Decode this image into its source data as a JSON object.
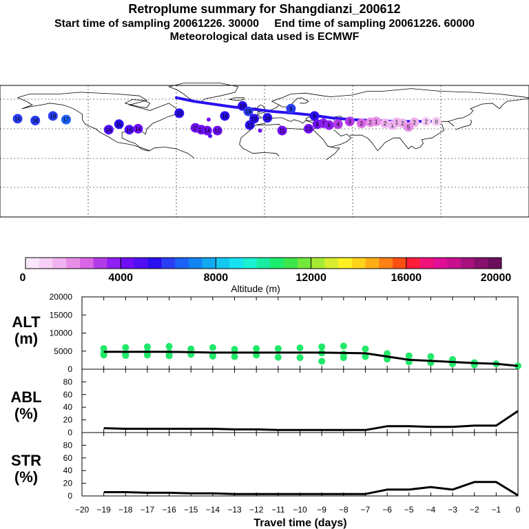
{
  "header": {
    "title": "Retroplume summary for Shangdianzi_200612",
    "subtitle": "Start time of sampling 20061226. 30000     End time of sampling 20061226. 60000",
    "met_line": "Meteorological data used is ECMWF"
  },
  "colorbar": {
    "label": "Altitude (m)",
    "ticks": [
      "0",
      "4000",
      "8000",
      "12000",
      "16000",
      "20000"
    ],
    "min": 0,
    "max": 20000,
    "colors": [
      "#fbe7fb",
      "#f7cff7",
      "#f0b2f0",
      "#e88de8",
      "#d966e6",
      "#b23be8",
      "#8f1ff2",
      "#6f0ff5",
      "#4f0ff5",
      "#2a0ff0",
      "#2b3ef5",
      "#1c61f5",
      "#1284f2",
      "#11a8f0",
      "#13c8f0",
      "#17e2f0",
      "#1af0d2",
      "#17eca0",
      "#1cec6e",
      "#3ce64b",
      "#73e83b",
      "#a6ea33",
      "#d7ee2e",
      "#fff021",
      "#ffd31a",
      "#ffad16",
      "#ff8014",
      "#ff4e14",
      "#ff1d3a",
      "#f0127a",
      "#e00f95",
      "#c8108e",
      "#a6117d",
      "#86106b",
      "#6b0f5c"
    ]
  },
  "map": {
    "markers": [
      {
        "lon": -168,
        "lat": 43,
        "label": "16",
        "alt": 6000
      },
      {
        "lon": -156,
        "lat": 41,
        "label": "18",
        "alt": 6200
      },
      {
        "lon": -144,
        "lat": 46,
        "label": "18",
        "alt": 6000
      },
      {
        "lon": -135,
        "lat": 42,
        "label": "17",
        "alt": 6300
      },
      {
        "lon": -99,
        "lat": 37,
        "label": "15",
        "alt": 5200
      },
      {
        "lon": -106,
        "lat": 31,
        "label": "16",
        "alt": 4800
      },
      {
        "lon": -92,
        "lat": 31,
        "label": "16",
        "alt": 4600
      },
      {
        "lon": -86,
        "lat": 32,
        "label": "14",
        "alt": 4400
      },
      {
        "lon": -58,
        "lat": 49,
        "label": "13",
        "alt": 5300
      },
      {
        "lon": -47,
        "lat": 33,
        "label": "11",
        "alt": 4300
      },
      {
        "lon": -43,
        "lat": 31,
        "label": "13",
        "alt": 4200
      },
      {
        "lon": -39,
        "lat": 30,
        "label": "14",
        "alt": 4200
      },
      {
        "lon": -37,
        "lat": 24,
        "label": "",
        "alt": 4700
      },
      {
        "lon": -38,
        "lat": 42,
        "label": "",
        "alt": 4000
      },
      {
        "lon": -32,
        "lat": 30,
        "label": "10",
        "alt": 4300
      },
      {
        "lon": -27,
        "lat": 46,
        "label": "16",
        "alt": 5500
      },
      {
        "lon": -15,
        "lat": 57,
        "label": "10",
        "alt": 5500
      },
      {
        "lon": -10,
        "lat": 36,
        "label": "12",
        "alt": 5600
      },
      {
        "lon": -11,
        "lat": 51,
        "label": "18",
        "alt": 5800
      },
      {
        "lon": -7,
        "lat": 43,
        "label": "16",
        "alt": 5300
      },
      {
        "lon": -3,
        "lat": 30,
        "label": "",
        "alt": 4000
      },
      {
        "lon": 2,
        "lat": 44,
        "label": "16",
        "alt": 5400
      },
      {
        "lon": 12,
        "lat": 30,
        "label": "11",
        "alt": 4200
      },
      {
        "lon": 18,
        "lat": 54,
        "label": "9",
        "alt": 6100
      },
      {
        "lon": 30,
        "lat": 32,
        "label": "13",
        "alt": 4500
      },
      {
        "lon": 34,
        "lat": 46,
        "label": "8",
        "alt": 5200
      },
      {
        "lon": 36,
        "lat": 37,
        "label": "8",
        "alt": 4000
      },
      {
        "lon": 40,
        "lat": 38,
        "label": "7",
        "alt": 3600
      },
      {
        "lon": 44,
        "lat": 36,
        "label": "6",
        "alt": 3500
      },
      {
        "lon": 50,
        "lat": 37,
        "label": "4",
        "alt": 3200
      },
      {
        "lon": 58,
        "lat": 40,
        "label": "3",
        "alt": 3000
      },
      {
        "lon": 66,
        "lat": 38,
        "label": "2",
        "alt": 2700
      },
      {
        "lon": 72,
        "lat": 39,
        "label": "2",
        "alt": 2000
      },
      {
        "lon": 76,
        "lat": 40,
        "label": "1",
        "alt": 1900
      },
      {
        "lon": 82,
        "lat": 38,
        "label": "2",
        "alt": 1600
      },
      {
        "lon": 87,
        "lat": 36,
        "label": "1",
        "alt": 1500
      },
      {
        "lon": 90,
        "lat": 39,
        "label": "1",
        "alt": 1400
      },
      {
        "lon": 94,
        "lat": 38,
        "label": "2",
        "alt": 1300
      },
      {
        "lon": 102,
        "lat": 39,
        "label": "2",
        "alt": 1200
      },
      {
        "lon": 110,
        "lat": 40,
        "label": "2",
        "alt": 1100
      },
      {
        "lon": 98,
        "lat": 34,
        "label": "5",
        "alt": 1900
      },
      {
        "lon": 117,
        "lat": 40,
        "label": "0",
        "alt": 900
      }
    ],
    "track": [
      [
        -60,
        66
      ],
      [
        -48,
        62
      ],
      [
        -35,
        59
      ],
      [
        -22,
        56
      ],
      [
        -10,
        54
      ],
      [
        5,
        51
      ],
      [
        20,
        49
      ],
      [
        32,
        47
      ],
      [
        45,
        44
      ],
      [
        60,
        42
      ],
      [
        75,
        41
      ],
      [
        90,
        40
      ],
      [
        105,
        40
      ],
      [
        117,
        40
      ]
    ]
  },
  "chart_data": [
    {
      "type": "line",
      "panel": "ALT",
      "ylabel": "ALT\n(m)",
      "ylabel_lines": [
        "ALT",
        "(m)"
      ],
      "ylim": [
        0,
        20000
      ],
      "yticks": [
        "20000",
        "15000",
        "10000",
        "5000",
        "0"
      ],
      "x": [
        -19,
        -18,
        -17,
        -16,
        -15,
        -14,
        -13,
        -12,
        -11,
        -10,
        -9,
        -8,
        -7,
        -6,
        -5,
        -4,
        -3,
        -2,
        -1,
        0
      ],
      "series": [
        {
          "name": "mean altitude",
          "values": [
            4800,
            4800,
            4800,
            4800,
            4700,
            4600,
            4600,
            4600,
            4600,
            4600,
            4600,
            4500,
            4400,
            3500,
            2600,
            2300,
            2000,
            1700,
            1500,
            900
          ]
        }
      ],
      "scatter": [
        {
          "x": -19,
          "y": 5700
        },
        {
          "x": -19,
          "y": 4500
        },
        {
          "x": -19,
          "y": 3900
        },
        {
          "x": -18,
          "y": 6000
        },
        {
          "x": -18,
          "y": 4300
        },
        {
          "x": -18,
          "y": 3800
        },
        {
          "x": -17,
          "y": 6200
        },
        {
          "x": -17,
          "y": 4700
        },
        {
          "x": -17,
          "y": 3900
        },
        {
          "x": -16,
          "y": 6300
        },
        {
          "x": -16,
          "y": 4600
        },
        {
          "x": -16,
          "y": 3700
        },
        {
          "x": -15,
          "y": 5600
        },
        {
          "x": -15,
          "y": 4100
        },
        {
          "x": -14,
          "y": 6000
        },
        {
          "x": -14,
          "y": 3900
        },
        {
          "x": -14,
          "y": 3600
        },
        {
          "x": -13,
          "y": 5500
        },
        {
          "x": -13,
          "y": 3500
        },
        {
          "x": -12,
          "y": 5700
        },
        {
          "x": -12,
          "y": 3900
        },
        {
          "x": -11,
          "y": 5700
        },
        {
          "x": -11,
          "y": 3300
        },
        {
          "x": -10,
          "y": 5900
        },
        {
          "x": -10,
          "y": 3200
        },
        {
          "x": -9,
          "y": 6200
        },
        {
          "x": -9,
          "y": 4500
        },
        {
          "x": -9,
          "y": 2200
        },
        {
          "x": -8,
          "y": 6400
        },
        {
          "x": -8,
          "y": 4200
        },
        {
          "x": -8,
          "y": 3200
        },
        {
          "x": -7,
          "y": 5600
        },
        {
          "x": -7,
          "y": 3500
        },
        {
          "x": -6,
          "y": 4300
        },
        {
          "x": -6,
          "y": 2800
        },
        {
          "x": -5,
          "y": 3700
        },
        {
          "x": -5,
          "y": 2000
        },
        {
          "x": -4,
          "y": 3500
        },
        {
          "x": -4,
          "y": 1800
        },
        {
          "x": -3,
          "y": 2700
        },
        {
          "x": -3,
          "y": 1500
        },
        {
          "x": -2,
          "y": 1800
        },
        {
          "x": -2,
          "y": 1200
        },
        {
          "x": -1,
          "y": 1500
        },
        {
          "x": 0,
          "y": 900
        }
      ]
    },
    {
      "type": "line",
      "panel": "ABL",
      "ylabel": "ABL\n(%)",
      "ylabel_lines": [
        "ABL",
        "(%)"
      ],
      "ylim": [
        0,
        100
      ],
      "yticks": [
        "80",
        "60",
        "40",
        "20",
        "0"
      ],
      "x": [
        -19,
        -18,
        -17,
        -16,
        -15,
        -14,
        -13,
        -12,
        -11,
        -10,
        -9,
        -8,
        -7,
        -6,
        -5,
        -4,
        -3,
        -2,
        -1,
        0
      ],
      "series": [
        {
          "name": "ABL fraction",
          "values": [
            7,
            6,
            6,
            6,
            6,
            6,
            5,
            5,
            4,
            4,
            4,
            4,
            4,
            10,
            10,
            9,
            9,
            11,
            11,
            34
          ]
        }
      ]
    },
    {
      "type": "line",
      "panel": "STR",
      "ylabel": "STR\n(%)",
      "ylabel_lines": [
        "STR",
        "(%)"
      ],
      "ylim": [
        0,
        100
      ],
      "yticks": [
        "80",
        "60",
        "40",
        "20",
        "0"
      ],
      "x": [
        -19,
        -18,
        -17,
        -16,
        -15,
        -14,
        -13,
        -12,
        -11,
        -10,
        -9,
        -8,
        -7,
        -6,
        -5,
        -4,
        -3,
        -2,
        -1,
        0
      ],
      "xlabel": "Travel time (days)",
      "xticks": [
        "−20",
        "−19",
        "−18",
        "−17",
        "−16",
        "−15",
        "−14",
        "−13",
        "−12",
        "−11",
        "−10",
        "−9",
        "−8",
        "−7",
        "−6",
        "−5",
        "−4",
        "−3",
        "−2",
        "−1",
        "0"
      ],
      "xlim": [
        -20,
        0
      ],
      "series": [
        {
          "name": "stratosphere fraction",
          "values": [
            6,
            6,
            5,
            5,
            4,
            4,
            3,
            3,
            3,
            3,
            3,
            3,
            3,
            10,
            10,
            14,
            10,
            22,
            22,
            1
          ]
        }
      ]
    }
  ]
}
